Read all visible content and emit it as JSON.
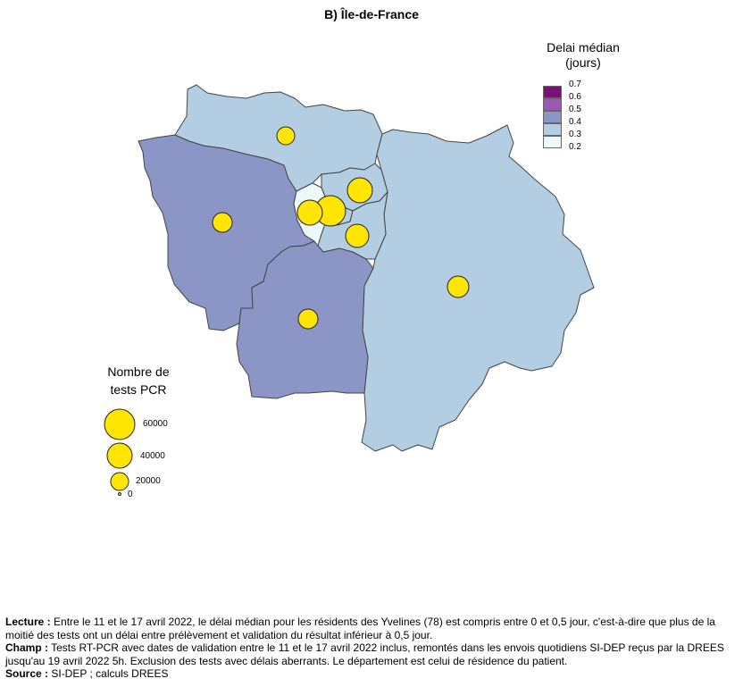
{
  "title": "B) Île-de-France",
  "color_legend": {
    "title_line1": "Delai médian",
    "title_line2": "(jours)",
    "classes": [
      {
        "label": "0.7",
        "color": "#7a117b"
      },
      {
        "label": "0.6",
        "color": "#9b59b6"
      },
      {
        "label": "0.5",
        "color": "#9b59b6"
      },
      {
        "label": "0.4",
        "color": "#8c96c6"
      },
      {
        "label": "0.3",
        "color": "#b3cde3"
      },
      {
        "label": "0.2",
        "color": "#edf8fb"
      }
    ]
  },
  "size_legend": {
    "title_line1": "Nombre de",
    "title_line2": "tests PCR",
    "labels": [
      "60000",
      "40000",
      "20000",
      "0"
    ]
  },
  "departments": [
    {
      "name": "Val-d'Oise",
      "class": "0.3",
      "color": "#b3cde3"
    },
    {
      "name": "Yvelines",
      "class": "0.4",
      "color": "#8c96c6"
    },
    {
      "name": "Essonne",
      "class": "0.4",
      "color": "#8c96c6"
    },
    {
      "name": "Seine-et-Marne",
      "class": "0.3",
      "color": "#b3cde3"
    },
    {
      "name": "Hauts-de-Seine",
      "class": "0.2",
      "color": "#edf8fb"
    },
    {
      "name": "Paris",
      "class": "0.3",
      "color": "#b3cde3"
    },
    {
      "name": "Seine-Saint-Denis",
      "class": "0.3",
      "color": "#b3cde3"
    },
    {
      "name": "Val-de-Marne",
      "class": "0.3",
      "color": "#b3cde3"
    }
  ],
  "bubble_color": "#ffe600",
  "footer": {
    "lecture_label": "Lecture :",
    "lecture_text": " Entre le 11 et le 17 avril 2022, le délai médian pour les résidents des Yvelines (78) est compris entre 0 et 0,5 jour, c'est-à-dire que plus de la moitié des tests ont un délai entre prélèvement et validation du résultat inférieur à 0,5 jour.",
    "champ_label": "Champ :",
    "champ_text": " Tests RT-PCR avec dates de validation entre le 11 et le 17 avril 2022 inclus, remontés dans les envois quotidiens SI-DEP reçus par la DREES jusqu'au 19 avril 2022 5h. Exclusion des tests avec délais aberrants. Le département est celui de résidence du patient.",
    "source_label": "Source :",
    "source_text": " SI-DEP ; calculs DREES"
  }
}
